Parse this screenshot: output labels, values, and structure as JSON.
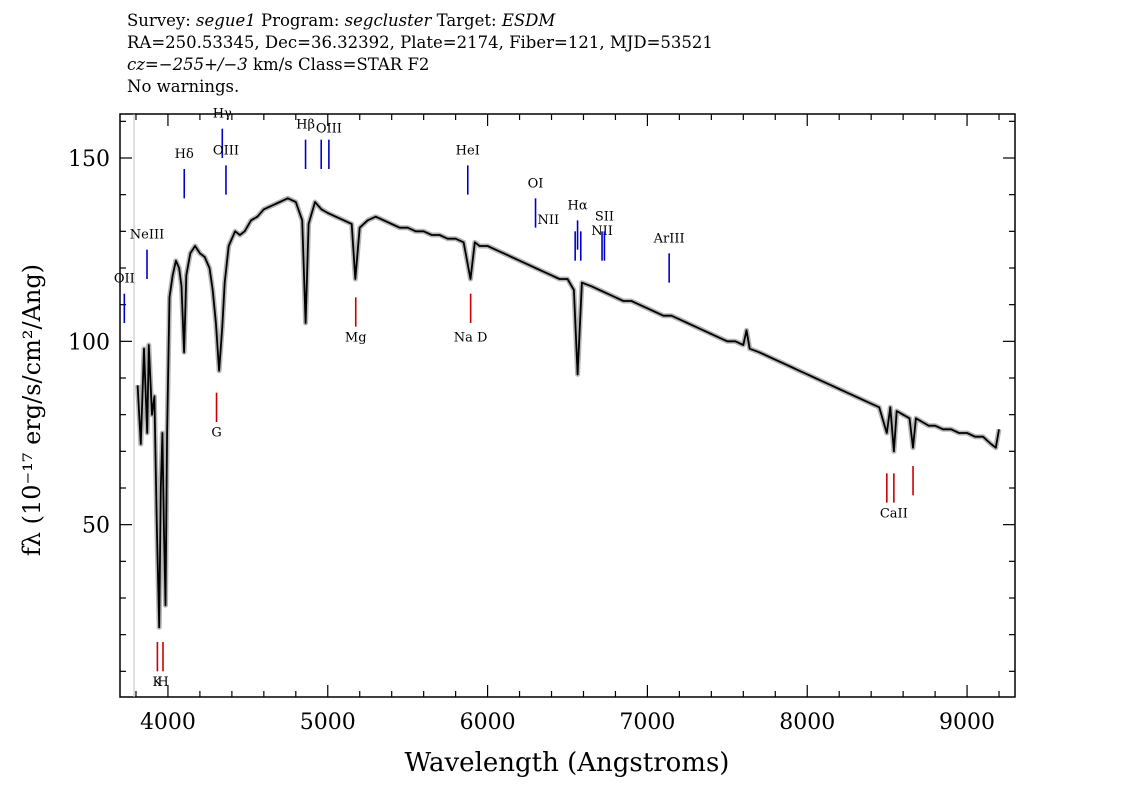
{
  "header": {
    "line1": {
      "survey_label": "Survey:",
      "survey": "segue1",
      "program_label": "Program:",
      "program": "segcluster",
      "target_label": "Target:",
      "target": "ESDM"
    },
    "line2": "RA=250.53345, Dec=36.32392, Plate=2174, Fiber=121, MJD=53521",
    "line3": {
      "cz": "cz=−255+/−3",
      "rest": "km/s Class=STAR F2"
    },
    "line4": "No warnings."
  },
  "chart_data": {
    "type": "line",
    "xlabel": "Wavelength (Angstroms)",
    "ylabel": "fλ (10⁻¹⁷ erg/s/cm²/Ang)",
    "xlim": [
      3700,
      9300
    ],
    "ylim": [
      3,
      162
    ],
    "xticks": [
      4000,
      5000,
      6000,
      7000,
      8000,
      9000
    ],
    "yticks": [
      50,
      100,
      150
    ],
    "series": [
      {
        "color": "#000000",
        "points": [
          [
            3810,
            88
          ],
          [
            3830,
            72
          ],
          [
            3850,
            98
          ],
          [
            3870,
            75
          ],
          [
            3880,
            99
          ],
          [
            3900,
            80
          ],
          [
            3915,
            85
          ],
          [
            3930,
            50
          ],
          [
            3945,
            22
          ],
          [
            3955,
            60
          ],
          [
            3965,
            75
          ],
          [
            3975,
            48
          ],
          [
            3985,
            28
          ],
          [
            3995,
            75
          ],
          [
            4010,
            112
          ],
          [
            4030,
            118
          ],
          [
            4050,
            122
          ],
          [
            4070,
            120
          ],
          [
            4085,
            115
          ],
          [
            4101,
            97
          ],
          [
            4115,
            118
          ],
          [
            4140,
            124
          ],
          [
            4170,
            126
          ],
          [
            4200,
            124
          ],
          [
            4230,
            123
          ],
          [
            4260,
            120
          ],
          [
            4280,
            114
          ],
          [
            4300,
            105
          ],
          [
            4320,
            92
          ],
          [
            4340,
            104
          ],
          [
            4355,
            116
          ],
          [
            4380,
            126
          ],
          [
            4420,
            130
          ],
          [
            4450,
            129
          ],
          [
            4480,
            130
          ],
          [
            4520,
            133
          ],
          [
            4560,
            134
          ],
          [
            4600,
            136
          ],
          [
            4650,
            137
          ],
          [
            4700,
            138
          ],
          [
            4750,
            139
          ],
          [
            4800,
            138
          ],
          [
            4840,
            133
          ],
          [
            4861,
            105
          ],
          [
            4880,
            132
          ],
          [
            4920,
            138
          ],
          [
            4960,
            136
          ],
          [
            5000,
            135
          ],
          [
            5050,
            134
          ],
          [
            5100,
            133
          ],
          [
            5150,
            132
          ],
          [
            5172,
            117
          ],
          [
            5200,
            131
          ],
          [
            5250,
            133
          ],
          [
            5300,
            134
          ],
          [
            5350,
            133
          ],
          [
            5400,
            132
          ],
          [
            5450,
            131
          ],
          [
            5500,
            131
          ],
          [
            5550,
            130
          ],
          [
            5600,
            130
          ],
          [
            5650,
            129
          ],
          [
            5700,
            129
          ],
          [
            5750,
            128
          ],
          [
            5800,
            128
          ],
          [
            5850,
            127
          ],
          [
            5893,
            117
          ],
          [
            5920,
            127
          ],
          [
            5950,
            126
          ],
          [
            6000,
            126
          ],
          [
            6050,
            125
          ],
          [
            6100,
            124
          ],
          [
            6150,
            123
          ],
          [
            6200,
            122
          ],
          [
            6250,
            121
          ],
          [
            6300,
            120
          ],
          [
            6350,
            119
          ],
          [
            6400,
            118
          ],
          [
            6450,
            117
          ],
          [
            6500,
            117
          ],
          [
            6540,
            114
          ],
          [
            6563,
            91
          ],
          [
            6590,
            116
          ],
          [
            6650,
            115
          ],
          [
            6700,
            114
          ],
          [
            6750,
            113
          ],
          [
            6800,
            112
          ],
          [
            6850,
            111
          ],
          [
            6900,
            111
          ],
          [
            6950,
            110
          ],
          [
            7000,
            109
          ],
          [
            7050,
            108
          ],
          [
            7100,
            107
          ],
          [
            7150,
            107
          ],
          [
            7200,
            106
          ],
          [
            7250,
            105
          ],
          [
            7300,
            104
          ],
          [
            7350,
            103
          ],
          [
            7400,
            102
          ],
          [
            7450,
            101
          ],
          [
            7500,
            100
          ],
          [
            7550,
            100
          ],
          [
            7600,
            99
          ],
          [
            7620,
            103
          ],
          [
            7640,
            98
          ],
          [
            7700,
            97
          ],
          [
            7750,
            96
          ],
          [
            7800,
            95
          ],
          [
            7850,
            94
          ],
          [
            7900,
            93
          ],
          [
            7950,
            92
          ],
          [
            8000,
            91
          ],
          [
            8050,
            90
          ],
          [
            8100,
            89
          ],
          [
            8150,
            88
          ],
          [
            8200,
            87
          ],
          [
            8250,
            86
          ],
          [
            8300,
            85
          ],
          [
            8350,
            84
          ],
          [
            8400,
            83
          ],
          [
            8450,
            82
          ],
          [
            8498,
            75
          ],
          [
            8520,
            82
          ],
          [
            8542,
            70
          ],
          [
            8560,
            81
          ],
          [
            8600,
            80
          ],
          [
            8640,
            79
          ],
          [
            8662,
            71
          ],
          [
            8680,
            79
          ],
          [
            8720,
            78
          ],
          [
            8760,
            77
          ],
          [
            8800,
            77
          ],
          [
            8850,
            76
          ],
          [
            8900,
            76
          ],
          [
            8950,
            75
          ],
          [
            9000,
            75
          ],
          [
            9050,
            74
          ],
          [
            9100,
            74
          ],
          [
            9150,
            72
          ],
          [
            9180,
            71
          ],
          [
            9200,
            76
          ]
        ]
      }
    ],
    "emission_lines": [
      {
        "label": "OII",
        "x": 3727,
        "y0": 113,
        "y1": 105,
        "label_y": 116,
        "color": "#0000cc"
      },
      {
        "label": "NeIII",
        "x": 3869,
        "y0": 125,
        "y1": 117,
        "label_y": 128,
        "color": "#0000cc"
      },
      {
        "label": "Hδ",
        "x": 4102,
        "y0": 147,
        "y1": 139,
        "label_y": 150,
        "color": "#0000cc"
      },
      {
        "label": "Hγ",
        "x": 4340,
        "y0": 158,
        "y1": 150,
        "label_y": 161,
        "color": "#0000cc"
      },
      {
        "label": "OIII",
        "x": 4363,
        "y0": 148,
        "y1": 140,
        "label_y": 151,
        "color": "#0000cc"
      },
      {
        "label": "Hβ",
        "x": 4861,
        "y0": 155,
        "y1": 147,
        "label_y": 158,
        "color": "#0000cc"
      },
      {
        "label": "OIII",
        "x": 4959,
        "y0": 155,
        "y1": 147,
        "label_y": 157,
        "color": "#0000cc",
        "label_x": 5007
      },
      {
        "label": "",
        "x": 5007,
        "y0": 155,
        "y1": 147,
        "color": "#0000cc"
      },
      {
        "label": "HeI",
        "x": 5876,
        "y0": 148,
        "y1": 140,
        "label_y": 151,
        "color": "#0000cc"
      },
      {
        "label": "OI",
        "x": 6300,
        "y0": 139,
        "y1": 131,
        "label_y": 142,
        "color": "#0000cc"
      },
      {
        "label": "NII",
        "x": 6548,
        "y0": 130,
        "y1": 122,
        "label_y": 132,
        "color": "#0000cc",
        "label_x": 6380
      },
      {
        "label": "Hα",
        "x": 6563,
        "y0": 133,
        "y1": 125,
        "label_y": 136,
        "color": "#0000cc"
      },
      {
        "label": "",
        "x": 6583,
        "y0": 130,
        "y1": 122,
        "color": "#0000cc"
      },
      {
        "label": "NII",
        "x": 6716,
        "y0": 130,
        "y1": 122,
        "label_y": 129,
        "color": "#0000cc"
      },
      {
        "label": "SII",
        "x": 6731,
        "y0": 130,
        "y1": 122,
        "label_y": 133,
        "color": "#0000cc"
      },
      {
        "label": "ArIII",
        "x": 7136,
        "y0": 124,
        "y1": 116,
        "label_y": 127,
        "color": "#0000cc"
      }
    ],
    "absorption_lines": [
      {
        "label": "G",
        "x": 4304,
        "y0": 86,
        "y1": 78,
        "label_y": 74,
        "color": "#cc0000"
      },
      {
        "label": "Mg",
        "x": 5175,
        "y0": 112,
        "y1": 104,
        "label_y": 100,
        "color": "#cc0000"
      },
      {
        "label": "Na D",
        "x": 5894,
        "y0": 113,
        "y1": 105,
        "label_y": 100,
        "color": "#cc0000"
      },
      {
        "label": "CaII",
        "x": 8498,
        "y0": 64,
        "y1": 56,
        "label_y": 52,
        "color": "#cc0000",
        "label_x": 8542
      },
      {
        "label": "",
        "x": 8542,
        "y0": 64,
        "y1": 56,
        "color": "#cc0000"
      },
      {
        "label": "",
        "x": 8662,
        "y0": 66,
        "y1": 58,
        "color": "#cc0000"
      },
      {
        "label": "K",
        "x": 3934,
        "y0": 18,
        "y1": 10,
        "label_y": 6,
        "color": "#cc0000"
      },
      {
        "label": "H",
        "x": 3969,
        "y0": 18,
        "y1": 10,
        "label_y": 6,
        "color": "#cc0000"
      }
    ]
  }
}
